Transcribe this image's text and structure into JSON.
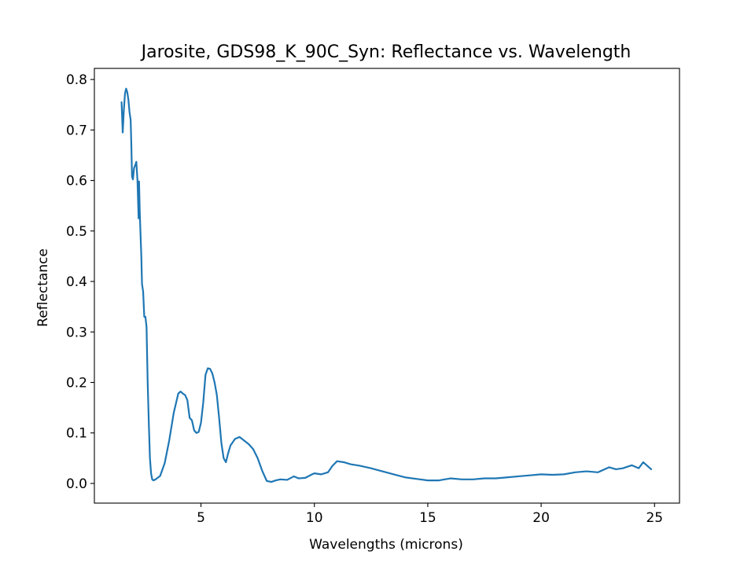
{
  "chart_data": {
    "type": "line",
    "title": "Jarosite, GDS98_K_90C_Syn: Reflectance vs. Wavelength",
    "xlabel": "Wavelengths (microns)",
    "ylabel": "Reflectance",
    "xlim": [
      0.3,
      26.1
    ],
    "ylim": [
      -0.039,
      0.822
    ],
    "xticks": [
      5,
      10,
      15,
      20,
      25
    ],
    "xtick_labels": [
      "5",
      "10",
      "15",
      "20",
      "25"
    ],
    "yticks": [
      0.0,
      0.1,
      0.2,
      0.3,
      0.4,
      0.5,
      0.6,
      0.7,
      0.8
    ],
    "ytick_labels": [
      "0.0",
      "0.1",
      "0.2",
      "0.3",
      "0.4",
      "0.5",
      "0.6",
      "0.7",
      "0.8"
    ],
    "grid": false,
    "color": "#1f77b4",
    "series": [
      {
        "x": [
          1.5,
          1.55,
          1.6,
          1.65,
          1.7,
          1.75,
          1.8,
          1.85,
          1.9,
          1.93,
          1.96,
          2.0,
          2.05,
          2.1,
          2.15,
          2.2,
          2.22,
          2.25,
          2.27,
          2.3,
          2.33,
          2.37,
          2.4,
          2.45,
          2.5,
          2.55,
          2.6,
          2.65,
          2.7,
          2.75,
          2.8,
          2.85,
          2.9,
          3.0,
          3.2,
          3.4,
          3.6,
          3.8,
          4.0,
          4.1,
          4.2,
          4.3,
          4.4,
          4.5,
          4.6,
          4.7,
          4.8,
          4.9,
          5.0,
          5.1,
          5.2,
          5.3,
          5.4,
          5.5,
          5.6,
          5.7,
          5.8,
          5.9,
          6.0,
          6.1,
          6.2,
          6.3,
          6.5,
          6.7,
          6.9,
          7.1,
          7.3,
          7.5,
          7.7,
          7.9,
          8.1,
          8.3,
          8.5,
          8.8,
          9.1,
          9.3,
          9.6,
          9.9,
          10.0,
          10.3,
          10.6,
          10.8,
          11.0,
          11.3,
          11.6,
          12.0,
          12.5,
          13.0,
          13.5,
          14.0,
          14.5,
          15.0,
          15.5,
          16.0,
          16.5,
          17.0,
          17.5,
          18.0,
          18.5,
          19.0,
          19.5,
          20.0,
          20.5,
          21.0,
          21.5,
          22.0,
          22.5,
          23.0,
          23.3,
          23.6,
          24.0,
          24.3,
          24.5,
          24.7,
          24.85
        ],
        "y": [
          0.755,
          0.695,
          0.74,
          0.772,
          0.782,
          0.775,
          0.76,
          0.735,
          0.72,
          0.67,
          0.608,
          0.602,
          0.625,
          0.63,
          0.637,
          0.6,
          0.57,
          0.525,
          0.598,
          0.54,
          0.5,
          0.45,
          0.395,
          0.38,
          0.33,
          0.33,
          0.31,
          0.2,
          0.12,
          0.05,
          0.02,
          0.008,
          0.006,
          0.008,
          0.015,
          0.04,
          0.085,
          0.14,
          0.178,
          0.182,
          0.178,
          0.175,
          0.165,
          0.13,
          0.125,
          0.105,
          0.1,
          0.102,
          0.12,
          0.16,
          0.215,
          0.228,
          0.227,
          0.218,
          0.2,
          0.175,
          0.13,
          0.08,
          0.05,
          0.042,
          0.06,
          0.075,
          0.088,
          0.092,
          0.085,
          0.078,
          0.068,
          0.05,
          0.025,
          0.005,
          0.003,
          0.006,
          0.008,
          0.007,
          0.014,
          0.01,
          0.011,
          0.018,
          0.02,
          0.018,
          0.022,
          0.035,
          0.044,
          0.042,
          0.038,
          0.035,
          0.03,
          0.024,
          0.018,
          0.012,
          0.009,
          0.006,
          0.006,
          0.01,
          0.008,
          0.008,
          0.01,
          0.01,
          0.012,
          0.014,
          0.016,
          0.018,
          0.017,
          0.018,
          0.022,
          0.024,
          0.022,
          0.032,
          0.028,
          0.03,
          0.036,
          0.03,
          0.042,
          0.034,
          0.028
        ]
      }
    ]
  }
}
